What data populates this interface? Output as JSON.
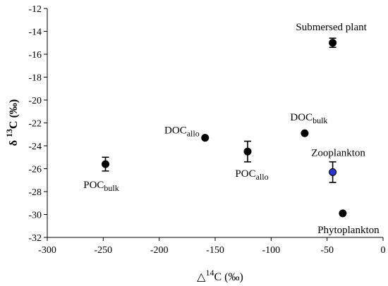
{
  "chart_data": {
    "type": "scatter",
    "xlabel": {
      "prefix": "△",
      "sup": "14",
      "main": "C (‰)"
    },
    "ylabel": {
      "prefix": "δ ",
      "sup": "13",
      "main": "C (‰)"
    },
    "xlim": [
      -300,
      0
    ],
    "ylim": [
      -32,
      -12
    ],
    "xticks": [
      -300,
      -250,
      -200,
      -150,
      -100,
      -50,
      0
    ],
    "yticks": [
      -32,
      -30,
      -28,
      -26,
      -24,
      -22,
      -20,
      -18,
      -16,
      -14,
      -12
    ],
    "grid": false,
    "points": [
      {
        "main": "POC",
        "sub": "bulk",
        "x": -248,
        "y": -25.6,
        "err": 0.6,
        "color": "#000000"
      },
      {
        "main": "DOC",
        "sub": "allo",
        "x": -159,
        "y": -23.3,
        "err": null,
        "color": "#000000"
      },
      {
        "main": "POC",
        "sub": "allo",
        "x": -121,
        "y": -24.5,
        "err": 0.9,
        "color": "#000000"
      },
      {
        "main": "DOC",
        "sub": "bulk",
        "x": -70,
        "y": -22.9,
        "err": null,
        "color": "#000000"
      },
      {
        "main": "Submersed plant",
        "sub": "",
        "x": -45,
        "y": -15.0,
        "err": 0.4,
        "color": "#000000"
      },
      {
        "main": "Zooplankton",
        "sub": "",
        "x": -45,
        "y": -26.3,
        "err": 0.9,
        "color": "#2a36c8"
      },
      {
        "main": "Phytoplankton",
        "sub": "",
        "x": -36,
        "y": -29.9,
        "err": null,
        "color": "#000000"
      }
    ]
  }
}
